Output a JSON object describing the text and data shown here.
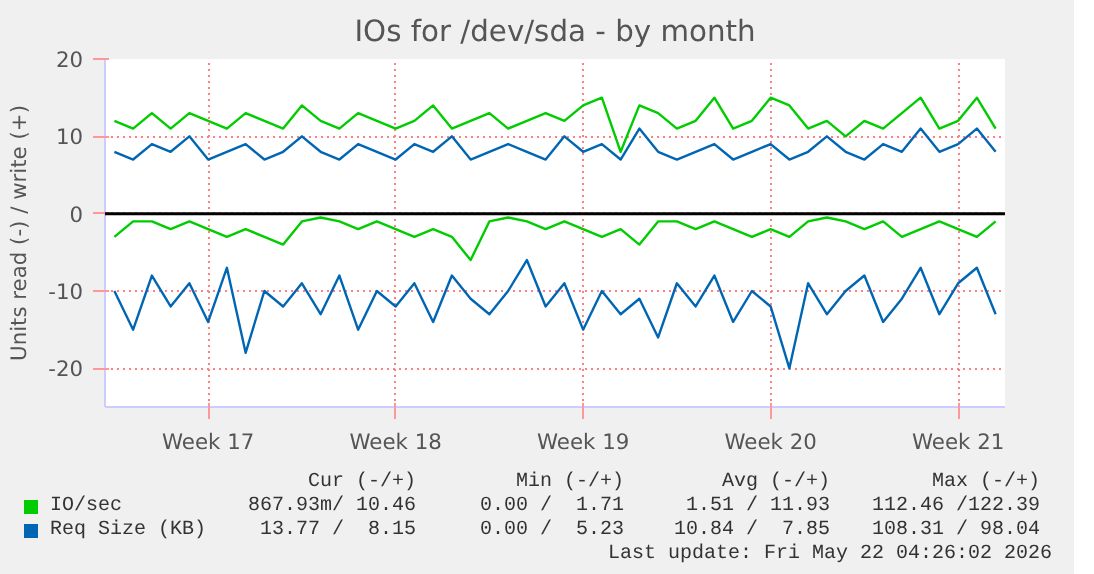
{
  "chart_data": {
    "type": "line",
    "title": "IOs for /dev/sda - by month",
    "ylabel": "Units read (-) / write (+)",
    "categories": [
      null,
      null,
      null,
      null,
      null,
      "Week 17",
      null,
      null,
      null,
      null,
      null,
      null,
      null,
      null,
      null,
      "Week 18",
      null,
      null,
      null,
      null,
      null,
      null,
      null,
      null,
      null,
      "Week 19",
      null,
      null,
      null,
      null,
      null,
      null,
      null,
      null,
      null,
      "Week 20",
      null,
      null,
      null,
      null,
      null,
      null,
      null,
      null,
      null,
      "Week 21",
      null,
      null
    ],
    "series": [
      {
        "name": "IO/sec",
        "color": "#00cc00",
        "values": [
          12,
          11,
          13,
          11,
          13,
          12,
          11,
          13,
          12,
          11,
          14,
          12,
          11,
          13,
          12,
          11,
          12,
          14,
          11,
          12,
          13,
          11,
          12,
          13,
          12,
          14,
          15,
          8,
          14,
          13,
          11,
          12,
          15,
          11,
          12,
          15,
          14,
          11,
          12,
          10,
          12,
          11,
          13,
          15,
          11,
          12,
          15,
          11
        ]
      },
      {
        "color": "#00cc00",
        "values": [
          -3,
          -1,
          -1,
          -2,
          -1,
          -2,
          -3,
          -2,
          -3,
          -4,
          -1,
          -0.5,
          -1,
          -2,
          -1,
          -2,
          -3,
          -2,
          -3,
          -6,
          -1,
          -0.5,
          -1,
          -2,
          -1,
          -2,
          -3,
          -2,
          -4,
          -1,
          -1,
          -2,
          -1,
          -2,
          -3,
          -2,
          -3,
          -1,
          -0.5,
          -1,
          -2,
          -1,
          -3,
          -2,
          -1,
          -2,
          -3,
          -1
        ]
      },
      {
        "name": "Req Size (KB)",
        "color": "#0066b3",
        "values": [
          8,
          7,
          9,
          8,
          10,
          7,
          8,
          9,
          7,
          8,
          10,
          8,
          7,
          9,
          8,
          7,
          9,
          8,
          10,
          7,
          8,
          9,
          8,
          7,
          10,
          8,
          9,
          7,
          11,
          8,
          7,
          8,
          9,
          7,
          8,
          9,
          7,
          8,
          10,
          8,
          7,
          9,
          8,
          11,
          8,
          9,
          11,
          8
        ]
      },
      {
        "color": "#0066b3",
        "values": [
          -10,
          -15,
          -8,
          -12,
          -9,
          -14,
          -7,
          -18,
          -10,
          -12,
          -9,
          -13,
          -8,
          -15,
          -10,
          -12,
          -9,
          -14,
          -8,
          -11,
          -13,
          -10,
          -6,
          -12,
          -9,
          -15,
          -10,
          -13,
          -11,
          -16,
          -9,
          -12,
          -8,
          -14,
          -10,
          -12,
          -20,
          -9,
          -13,
          -10,
          -8,
          -14,
          -11,
          -7,
          -13,
          -9,
          -7,
          -13
        ]
      }
    ],
    "ylim": [
      -25,
      20
    ],
    "yticks": [
      -20,
      -10,
      0,
      10,
      20
    ],
    "ref_lines": [
      {
        "axis": "y",
        "value": 0,
        "label": null,
        "color": "#000000"
      }
    ],
    "annotations": [
      "Cur (-/+)",
      "Min (-/+)",
      "Avg (-/+)",
      "Max (-/+)",
      "867.93m/ 10.46",
      "0.00 /  1.71",
      "1.51 / 11.93",
      "112.46 /122.39",
      "13.77 /  8.15",
      "0.00 /  5.23",
      "10.84 /  7.85",
      "108.31 / 98.04",
      "Last update: Fri May 22 04:26:02 2026"
    ],
    "grid": true,
    "legend": "bottom",
    "line_style": "solid",
    "marker": "none"
  }
}
